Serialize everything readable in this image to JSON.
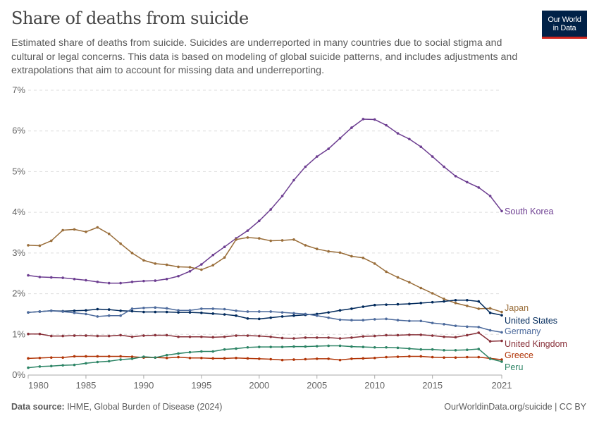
{
  "header": {
    "title": "Share of deaths from suicide",
    "subtitle": "Estimated share of deaths from suicide. Suicides are underreported in many countries due to social stigma and cultural or legal concerns. This data is based on modeling of global suicide patterns, and includes adjustments and extrapolations that aim to account for missing data and underreporting.",
    "logo_text": "Our World in Data"
  },
  "footer": {
    "source_label": "Data source:",
    "source_text": "IHME, Global Burden of Disease (2024)",
    "credit": "OurWorldinData.org/suicide | CC BY"
  },
  "chart_data": {
    "type": "line",
    "title": "Share of deaths from suicide",
    "xlabel": "",
    "ylabel": "",
    "xlim": [
      1980,
      2021
    ],
    "ylim": [
      0,
      7
    ],
    "x_ticks": [
      "1980",
      "1985",
      "1990",
      "1995",
      "2000",
      "2005",
      "2010",
      "2015",
      "2021"
    ],
    "y_ticks": [
      "0%",
      "1%",
      "2%",
      "3%",
      "4%",
      "5%",
      "6%",
      "7%"
    ],
    "grid": "horizontal dashed",
    "legend": "inline labels at right end of lines",
    "x": [
      1980,
      1981,
      1982,
      1983,
      1984,
      1985,
      1986,
      1987,
      1988,
      1989,
      1990,
      1991,
      1992,
      1993,
      1994,
      1995,
      1996,
      1997,
      1998,
      1999,
      2000,
      2001,
      2002,
      2003,
      2004,
      2005,
      2006,
      2007,
      2008,
      2009,
      2010,
      2011,
      2012,
      2013,
      2014,
      2015,
      2016,
      2017,
      2018,
      2019,
      2020,
      2021
    ],
    "series": [
      {
        "name": "South Korea",
        "color": "#6d3e91",
        "values": [
          2.45,
          2.41,
          2.4,
          2.39,
          2.36,
          2.33,
          2.29,
          2.26,
          2.26,
          2.29,
          2.31,
          2.32,
          2.36,
          2.43,
          2.55,
          2.72,
          2.95,
          3.15,
          3.36,
          3.55,
          3.79,
          4.07,
          4.4,
          4.79,
          5.12,
          5.37,
          5.56,
          5.82,
          6.08,
          6.29,
          6.28,
          6.14,
          5.94,
          5.8,
          5.61,
          5.37,
          5.12,
          4.89,
          4.74,
          4.61,
          4.4,
          4.03
        ]
      },
      {
        "name": "Japan",
        "color": "#996d39",
        "values": [
          3.19,
          3.18,
          3.3,
          3.56,
          3.58,
          3.52,
          3.63,
          3.47,
          3.23,
          3.0,
          2.82,
          2.74,
          2.71,
          2.66,
          2.65,
          2.59,
          2.7,
          2.89,
          3.33,
          3.38,
          3.36,
          3.3,
          3.31,
          3.33,
          3.19,
          3.1,
          3.04,
          3.01,
          2.92,
          2.88,
          2.74,
          2.54,
          2.4,
          2.28,
          2.14,
          2.01,
          1.87,
          1.77,
          1.7,
          1.63,
          1.64,
          1.55
        ]
      },
      {
        "name": "United States",
        "color": "#00295b",
        "values": [
          1.54,
          1.56,
          1.58,
          1.57,
          1.58,
          1.59,
          1.62,
          1.61,
          1.58,
          1.57,
          1.55,
          1.55,
          1.55,
          1.54,
          1.54,
          1.53,
          1.51,
          1.49,
          1.46,
          1.39,
          1.38,
          1.41,
          1.44,
          1.46,
          1.48,
          1.5,
          1.54,
          1.59,
          1.63,
          1.68,
          1.72,
          1.73,
          1.74,
          1.75,
          1.77,
          1.79,
          1.81,
          1.84,
          1.84,
          1.81,
          1.53,
          1.47
        ]
      },
      {
        "name": "Germany",
        "color": "#4c6a9c",
        "values": [
          1.54,
          1.56,
          1.58,
          1.56,
          1.53,
          1.5,
          1.44,
          1.46,
          1.46,
          1.63,
          1.65,
          1.66,
          1.64,
          1.59,
          1.59,
          1.63,
          1.63,
          1.62,
          1.58,
          1.56,
          1.56,
          1.56,
          1.54,
          1.52,
          1.5,
          1.46,
          1.41,
          1.36,
          1.35,
          1.35,
          1.37,
          1.38,
          1.35,
          1.33,
          1.33,
          1.28,
          1.25,
          1.21,
          1.19,
          1.18,
          1.1,
          1.05
        ]
      },
      {
        "name": "United Kingdom",
        "color": "#883039",
        "values": [
          1.01,
          1.01,
          0.96,
          0.96,
          0.97,
          0.97,
          0.96,
          0.96,
          0.98,
          0.94,
          0.97,
          0.98,
          0.98,
          0.94,
          0.94,
          0.94,
          0.93,
          0.94,
          0.97,
          0.97,
          0.96,
          0.94,
          0.91,
          0.9,
          0.92,
          0.92,
          0.92,
          0.9,
          0.92,
          0.95,
          0.96,
          0.98,
          0.98,
          0.99,
          0.99,
          0.97,
          0.94,
          0.93,
          0.98,
          1.04,
          0.83,
          0.84
        ]
      },
      {
        "name": "Greece",
        "color": "#b13507",
        "values": [
          0.41,
          0.42,
          0.43,
          0.43,
          0.46,
          0.46,
          0.46,
          0.46,
          0.46,
          0.45,
          0.43,
          0.43,
          0.42,
          0.44,
          0.42,
          0.42,
          0.41,
          0.41,
          0.42,
          0.41,
          0.4,
          0.39,
          0.37,
          0.38,
          0.39,
          0.4,
          0.4,
          0.37,
          0.4,
          0.41,
          0.42,
          0.44,
          0.45,
          0.46,
          0.46,
          0.44,
          0.43,
          0.43,
          0.44,
          0.44,
          0.41,
          0.38
        ]
      },
      {
        "name": "Peru",
        "color": "#2c8465",
        "values": [
          0.18,
          0.21,
          0.22,
          0.24,
          0.25,
          0.29,
          0.32,
          0.34,
          0.38,
          0.4,
          0.45,
          0.43,
          0.49,
          0.53,
          0.56,
          0.58,
          0.58,
          0.63,
          0.65,
          0.68,
          0.69,
          0.69,
          0.69,
          0.7,
          0.7,
          0.71,
          0.72,
          0.72,
          0.7,
          0.69,
          0.68,
          0.68,
          0.67,
          0.65,
          0.63,
          0.63,
          0.61,
          0.61,
          0.62,
          0.64,
          0.4,
          0.33
        ]
      }
    ]
  }
}
